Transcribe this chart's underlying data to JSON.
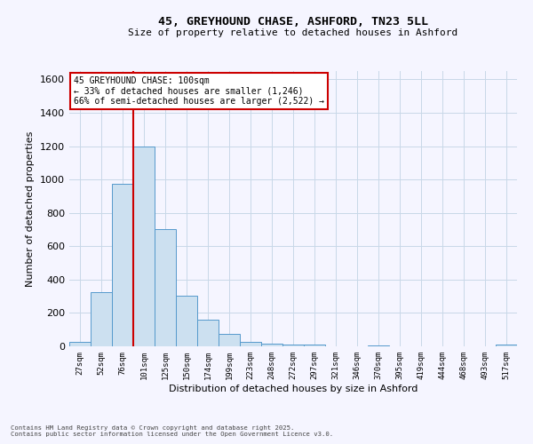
{
  "title_line1": "45, GREYHOUND CHASE, ASHFORD, TN23 5LL",
  "title_line2": "Size of property relative to detached houses in Ashford",
  "xlabel": "Distribution of detached houses by size in Ashford",
  "ylabel": "Number of detached properties",
  "categories": [
    "27sqm",
    "52sqm",
    "76sqm",
    "101sqm",
    "125sqm",
    "150sqm",
    "174sqm",
    "199sqm",
    "223sqm",
    "248sqm",
    "272sqm",
    "297sqm",
    "321sqm",
    "346sqm",
    "370sqm",
    "395sqm",
    "419sqm",
    "444sqm",
    "468sqm",
    "493sqm",
    "517sqm"
  ],
  "values": [
    25,
    325,
    975,
    1200,
    700,
    305,
    160,
    75,
    25,
    15,
    10,
    10,
    0,
    0,
    5,
    0,
    0,
    0,
    0,
    0,
    10
  ],
  "bar_color": "#cce0f0",
  "bar_edge_color": "#5599cc",
  "vline_color": "#cc0000",
  "ylim": [
    0,
    1650
  ],
  "yticks": [
    0,
    200,
    400,
    600,
    800,
    1000,
    1200,
    1400,
    1600
  ],
  "annotation_text": "45 GREYHOUND CHASE: 100sqm\n← 33% of detached houses are smaller (1,246)\n66% of semi-detached houses are larger (2,522) →",
  "footer_line1": "Contains HM Land Registry data © Crown copyright and database right 2025.",
  "footer_line2": "Contains public sector information licensed under the Open Government Licence v3.0.",
  "bg_color": "#f5f5ff",
  "grid_color": "#c8d8e8"
}
